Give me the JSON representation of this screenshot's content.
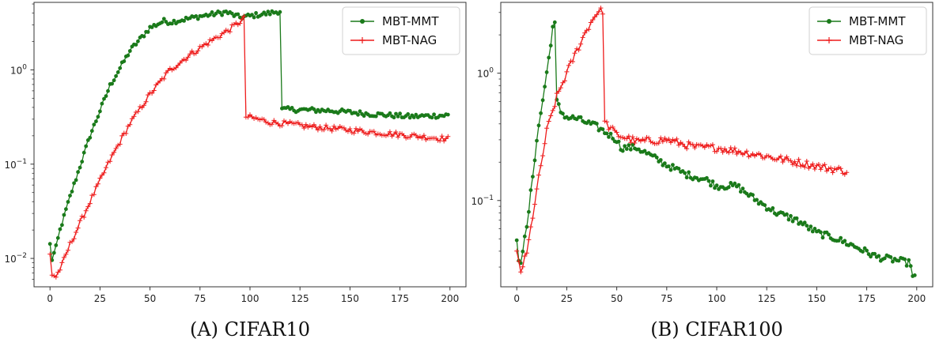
{
  "colors": {
    "mmt": "#1a7a1a",
    "nag": "#ee1c1c",
    "axis": "#333333"
  },
  "chart_data": [
    {
      "type": "line",
      "caption": {
        "label": "(A)",
        "text": "CIFAR10"
      },
      "yscale": "log",
      "xlim": [
        -8,
        208
      ],
      "ylim": [
        0.005,
        5.2
      ],
      "xticks": [
        "0",
        "25",
        "50",
        "75",
        "100",
        "125",
        "150",
        "175",
        "200"
      ],
      "yticks": [
        {
          "value": 0.01,
          "base": "10",
          "exp": "−2"
        },
        {
          "value": 0.1,
          "base": "10",
          "exp": "−1"
        },
        {
          "value": 1,
          "base": "10",
          "exp": "0"
        }
      ],
      "legend": "top-right",
      "series": [
        {
          "name": "MBT-MMT",
          "color": "#1a7a1a",
          "marker": "circle",
          "x_range": [
            0,
            199
          ],
          "knots": [
            [
              0,
              0.014
            ],
            [
              1,
              0.0098
            ],
            [
              3,
              0.013
            ],
            [
              5,
              0.02
            ],
            [
              10,
              0.045
            ],
            [
              20,
              0.2
            ],
            [
              30,
              0.68
            ],
            [
              40,
              1.6
            ],
            [
              50,
              2.8
            ],
            [
              57,
              3.3
            ],
            [
              60,
              3.2
            ],
            [
              75,
              3.7
            ],
            [
              88,
              4.1
            ],
            [
              95,
              3.6
            ],
            [
              110,
              4.0
            ],
            [
              115,
              4.2
            ],
            [
              116,
              0.38
            ],
            [
              120,
              0.38
            ],
            [
              140,
              0.37
            ],
            [
              160,
              0.34
            ],
            [
              180,
              0.32
            ],
            [
              199,
              0.33
            ]
          ]
        },
        {
          "name": "MBT-NAG",
          "color": "#ee1c1c",
          "marker": "plus",
          "x_range": [
            0,
            199
          ],
          "knots": [
            [
              0,
              0.011
            ],
            [
              1,
              0.0068
            ],
            [
              3,
              0.0064
            ],
            [
              6,
              0.0085
            ],
            [
              10,
              0.014
            ],
            [
              20,
              0.04
            ],
            [
              30,
              0.11
            ],
            [
              40,
              0.27
            ],
            [
              50,
              0.55
            ],
            [
              60,
              1.0
            ],
            [
              70,
              1.45
            ],
            [
              80,
              2.0
            ],
            [
              90,
              2.7
            ],
            [
              97,
              3.5
            ],
            [
              98,
              0.32
            ],
            [
              110,
              0.28
            ],
            [
              130,
              0.25
            ],
            [
              150,
              0.23
            ],
            [
              170,
              0.21
            ],
            [
              199,
              0.185
            ]
          ]
        }
      ]
    },
    {
      "type": "line",
      "caption": {
        "label": "(B)",
        "text": "CIFAR100"
      },
      "yscale": "log",
      "xlim": [
        -8,
        208
      ],
      "ylim": [
        0.021,
        3.6
      ],
      "xticks": [
        "0",
        "25",
        "50",
        "75",
        "100",
        "125",
        "150",
        "175",
        "200"
      ],
      "yticks": [
        {
          "value": 0.1,
          "base": "10",
          "exp": "−1"
        },
        {
          "value": 1,
          "base": "10",
          "exp": "0"
        }
      ],
      "legend": "top-right",
      "series": [
        {
          "name": "MBT-MMT",
          "color": "#1a7a1a",
          "marker": "circle",
          "x_range": [
            0,
            199
          ],
          "knots": [
            [
              0,
              0.047
            ],
            [
              1,
              0.035
            ],
            [
              2,
              0.034
            ],
            [
              5,
              0.06
            ],
            [
              10,
              0.3
            ],
            [
              15,
              1.0
            ],
            [
              18,
              2.3
            ],
            [
              19,
              2.4
            ],
            [
              20,
              0.6
            ],
            [
              22,
              0.5
            ],
            [
              25,
              0.45
            ],
            [
              30,
              0.44
            ],
            [
              40,
              0.38
            ],
            [
              50,
              0.3
            ],
            [
              52,
              0.26
            ],
            [
              60,
              0.26
            ],
            [
              75,
              0.19
            ],
            [
              85,
              0.16
            ],
            [
              95,
              0.145
            ],
            [
              100,
              0.13
            ],
            [
              110,
              0.13
            ],
            [
              120,
              0.1
            ],
            [
              130,
              0.08
            ],
            [
              140,
              0.07
            ],
            [
              150,
              0.056
            ],
            [
              160,
              0.05
            ],
            [
              170,
              0.043
            ],
            [
              180,
              0.036
            ],
            [
              190,
              0.034
            ],
            [
              197,
              0.032
            ],
            [
              198,
              0.025
            ],
            [
              199,
              0.025
            ]
          ]
        },
        {
          "name": "MBT-NAG",
          "color": "#ee1c1c",
          "marker": "plus",
          "x_range": [
            0,
            165
          ],
          "knots": [
            [
              0,
              0.038
            ],
            [
              2,
              0.028
            ],
            [
              5,
              0.038
            ],
            [
              10,
              0.12
            ],
            [
              15,
              0.35
            ],
            [
              20,
              0.65
            ],
            [
              25,
              1.0
            ],
            [
              30,
              1.5
            ],
            [
              35,
              2.2
            ],
            [
              40,
              3.0
            ],
            [
              43,
              3.1
            ],
            [
              44,
              0.41
            ],
            [
              50,
              0.33
            ],
            [
              60,
              0.29
            ],
            [
              75,
              0.3
            ],
            [
              90,
              0.26
            ],
            [
              100,
              0.26
            ],
            [
              120,
              0.23
            ],
            [
              140,
              0.2
            ],
            [
              155,
              0.18
            ],
            [
              165,
              0.17
            ]
          ]
        }
      ]
    }
  ]
}
